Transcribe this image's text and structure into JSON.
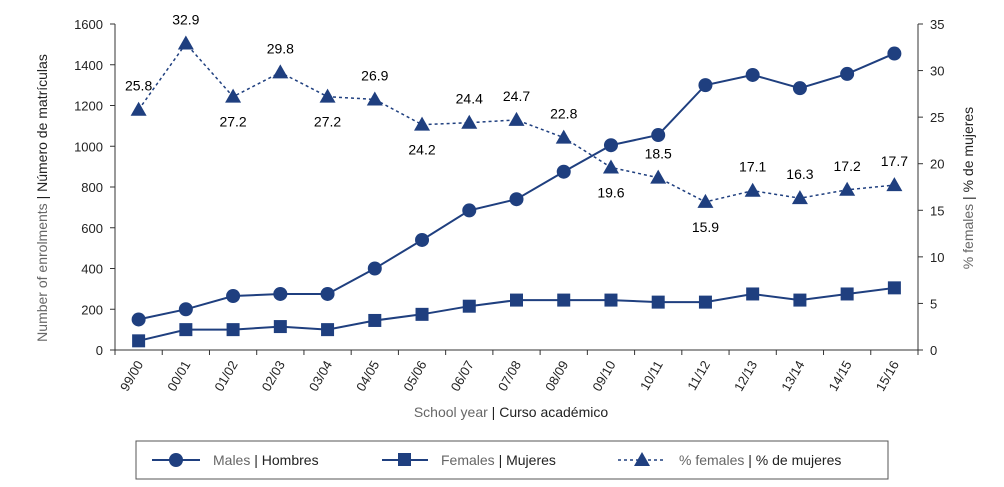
{
  "chart_data": {
    "type": "line",
    "categories": [
      "99/00",
      "00/01",
      "01/02",
      "02/03",
      "03/04",
      "04/05",
      "05/06",
      "06/07",
      "07/08",
      "08/09",
      "09/10",
      "10/11",
      "11/12",
      "12/13",
      "13/14",
      "14/15",
      "15/16"
    ],
    "series": [
      {
        "name": "Males | Hombres",
        "name_en": "Males",
        "name_es": "Hombres",
        "axis": "left",
        "marker": "circle",
        "line": "solid",
        "color": "#1f3f7f",
        "values": [
          150,
          200,
          265,
          275,
          275,
          400,
          540,
          685,
          740,
          875,
          1005,
          1055,
          1300,
          1350,
          1285,
          1355,
          1455
        ]
      },
      {
        "name": "Females | Mujeres",
        "name_en": "Females",
        "name_es": "Mujeres",
        "axis": "left",
        "marker": "square",
        "line": "solid",
        "color": "#1f3f7f",
        "values": [
          45,
          100,
          100,
          115,
          100,
          145,
          175,
          215,
          245,
          245,
          245,
          235,
          235,
          275,
          245,
          275,
          305
        ]
      },
      {
        "name": "% females | % de mujeres",
        "name_en": "% females",
        "name_es": "% de mujeres",
        "axis": "right",
        "marker": "triangle",
        "line": "dashed",
        "color": "#1f3f7f",
        "values": [
          25.8,
          32.9,
          27.2,
          29.8,
          27.2,
          26.9,
          24.2,
          24.4,
          24.7,
          22.8,
          19.6,
          18.5,
          15.9,
          17.1,
          16.3,
          17.2,
          17.7
        ],
        "labels": [
          "25.8",
          "32.9",
          "27.2",
          "29.8",
          "27.2",
          "26.9",
          "24.2",
          "24.4",
          "24.7",
          "22.8",
          "19.6",
          "18.5",
          "15.9",
          "17.1",
          "16.3",
          "17.2",
          "17.7"
        ]
      }
    ],
    "xlabel_en": "School year",
    "xlabel_es": "Curso académico",
    "ylabel_en": "Number of enrolments",
    "ylabel_es": "Número de matrículas",
    "y2label_en": "% females",
    "y2label_es": "% de mujeres",
    "ylim": [
      0,
      1600
    ],
    "yticks": [
      0,
      200,
      400,
      600,
      800,
      1000,
      1200,
      1400,
      1600
    ],
    "y2lim": [
      0,
      35
    ],
    "y2ticks": [
      0,
      5,
      10,
      15,
      20,
      25,
      30,
      35
    ],
    "grid": false,
    "legend_position": "bottom",
    "separator": "|"
  }
}
